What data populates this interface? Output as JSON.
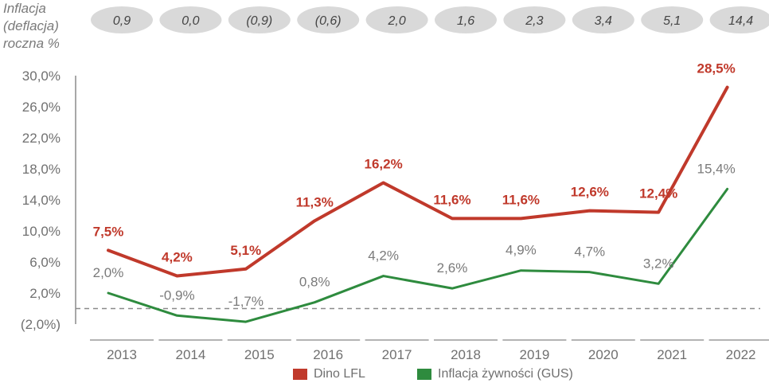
{
  "chart_data": {
    "type": "line",
    "categories": [
      "2013",
      "2014",
      "2015",
      "2016",
      "2017",
      "2018",
      "2019",
      "2020",
      "2021",
      "2022"
    ],
    "series": [
      {
        "name": "Dino LFL",
        "color": "#c0392b",
        "values": [
          7.5,
          4.2,
          5.1,
          11.3,
          16.2,
          11.6,
          11.6,
          12.6,
          12.4,
          28.5
        ],
        "labels": [
          "7,5%",
          "4,2%",
          "5,1%",
          "11,3%",
          "16,2%",
          "11,6%",
          "11,6%",
          "12,6%",
          "12,4%",
          "28,5%"
        ]
      },
      {
        "name": "Inflacja żywności (GUS)",
        "color": "#2e8b3e",
        "values": [
          2.0,
          -0.9,
          -1.7,
          0.8,
          4.2,
          2.6,
          4.9,
          4.7,
          3.2,
          15.4
        ],
        "labels": [
          "2,0%",
          "-0,9%",
          "-1,7%",
          "0,8%",
          "4,2%",
          "2,6%",
          "4,9%",
          "4,7%",
          "3,2%",
          "15,4%"
        ]
      }
    ],
    "yticks": [
      "30,0%",
      "26,0%",
      "22,0%",
      "18,0%",
      "14,0%",
      "10,0%",
      "6,0%",
      "2,0%",
      "(2,0%)"
    ],
    "ytick_values": [
      30,
      26,
      22,
      18,
      14,
      10,
      6,
      2,
      -2
    ],
    "ylim": [
      -2,
      30
    ],
    "baseline": 0,
    "inflation_header": {
      "label_lines": [
        "Inflacja",
        "(deflacja)",
        "roczna %"
      ],
      "values": [
        "0,9",
        "0,0",
        "(0,9)",
        "(0,6)",
        "2,0",
        "1,6",
        "2,3",
        "3,4",
        "5,1",
        "14,4"
      ]
    },
    "legend": [
      "Dino LFL",
      "Inflacja żywności (GUS)"
    ]
  }
}
